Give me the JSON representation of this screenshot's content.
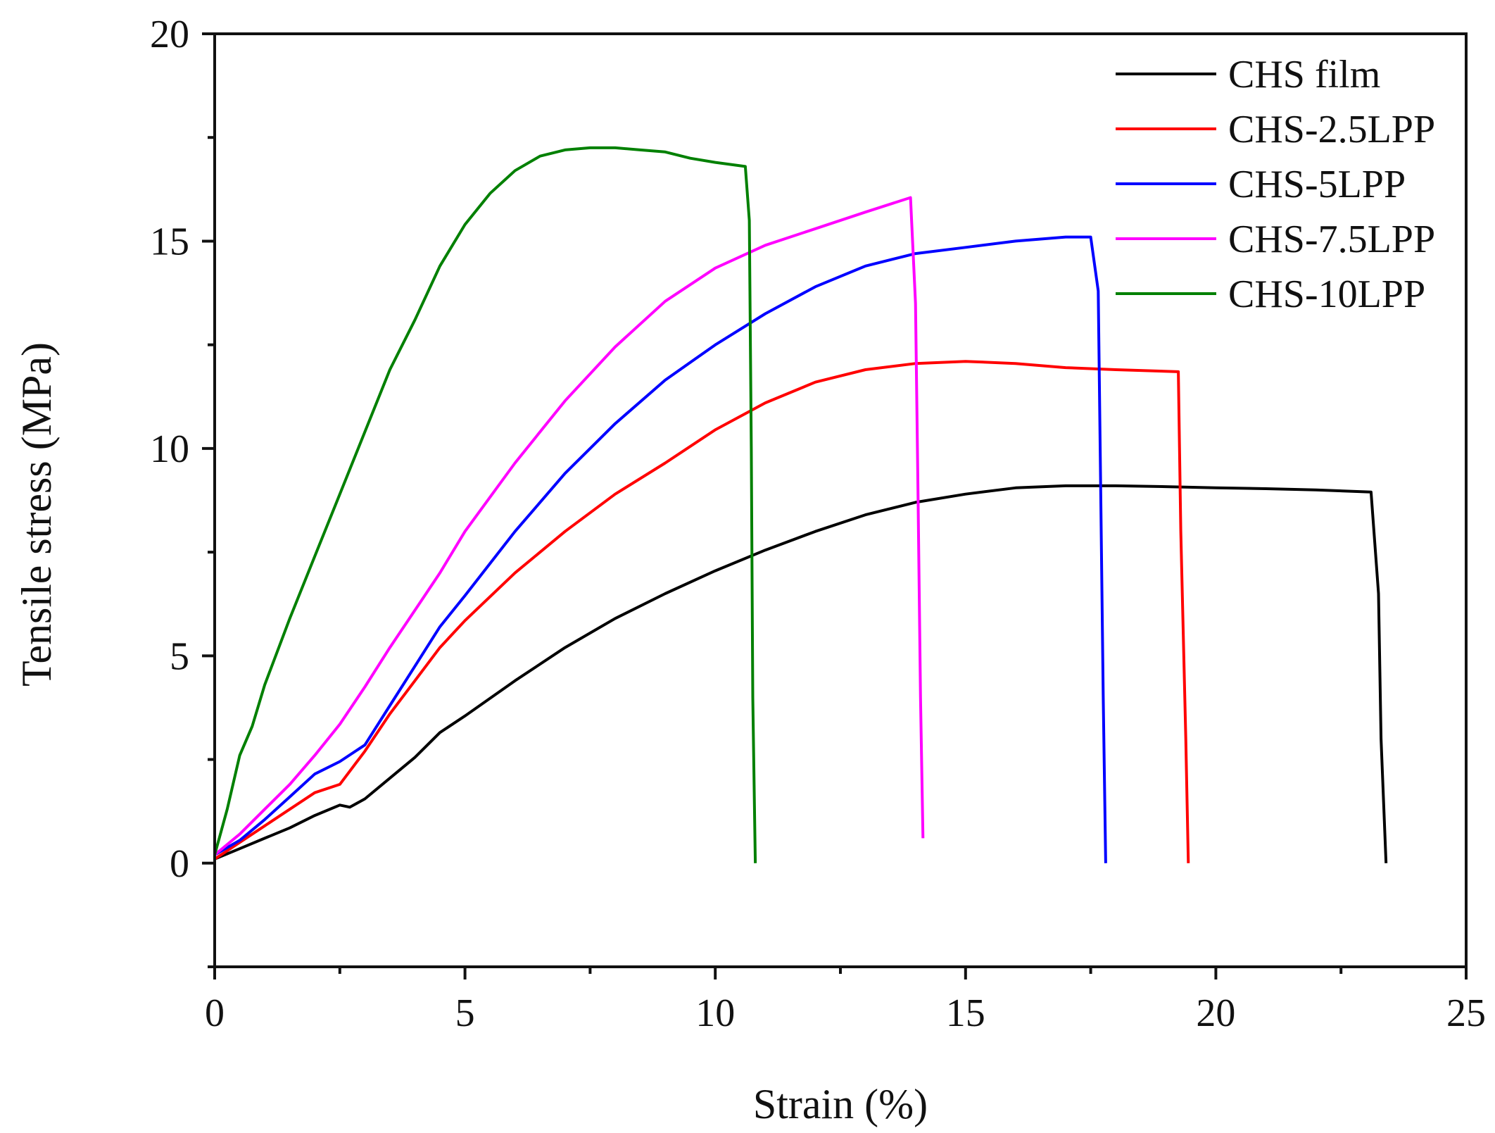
{
  "chart_data": {
    "type": "line",
    "title": "",
    "xlabel": "Strain (%)",
    "ylabel": "Tensile stress (MPa)",
    "xlim": [
      0,
      25
    ],
    "ylim": [
      -2.5,
      20
    ],
    "x_ticks": [
      0,
      5,
      10,
      15,
      20,
      25
    ],
    "x_tick_labels": [
      "0",
      "5",
      "10",
      "15",
      "20",
      "25"
    ],
    "y_ticks": [
      0,
      5,
      10,
      15,
      20
    ],
    "y_tick_labels": [
      "0",
      "5",
      "10",
      "15",
      "20"
    ],
    "grid": false,
    "legend_position": "top-right",
    "series": [
      {
        "name": "CHS film",
        "color": "#000000",
        "points": [
          [
            0,
            0.1
          ],
          [
            0.5,
            0.35
          ],
          [
            1,
            0.6
          ],
          [
            1.5,
            0.85
          ],
          [
            2,
            1.15
          ],
          [
            2.5,
            1.4
          ],
          [
            2.7,
            1.35
          ],
          [
            3,
            1.55
          ],
          [
            3.5,
            2.05
          ],
          [
            4,
            2.55
          ],
          [
            4.5,
            3.15
          ],
          [
            5,
            3.55
          ],
          [
            6,
            4.4
          ],
          [
            7,
            5.2
          ],
          [
            8,
            5.9
          ],
          [
            9,
            6.5
          ],
          [
            10,
            7.05
          ],
          [
            11,
            7.55
          ],
          [
            12,
            8.0
          ],
          [
            13,
            8.4
          ],
          [
            14,
            8.7
          ],
          [
            15,
            8.9
          ],
          [
            16,
            9.05
          ],
          [
            17,
            9.1
          ],
          [
            18,
            9.1
          ],
          [
            19,
            9.08
          ],
          [
            20,
            9.05
          ],
          [
            21,
            9.03
          ],
          [
            22,
            9.0
          ],
          [
            23.1,
            8.95
          ],
          [
            23.25,
            6.5
          ],
          [
            23.3,
            3.0
          ],
          [
            23.4,
            0.0
          ]
        ]
      },
      {
        "name": "CHS-2.5LPP",
        "color": "#ff0000",
        "points": [
          [
            0,
            0.1
          ],
          [
            0.5,
            0.5
          ],
          [
            1,
            0.9
          ],
          [
            1.5,
            1.3
          ],
          [
            2,
            1.7
          ],
          [
            2.5,
            1.9
          ],
          [
            3,
            2.7
          ],
          [
            3.5,
            3.6
          ],
          [
            4,
            4.4
          ],
          [
            4.5,
            5.2
          ],
          [
            5,
            5.85
          ],
          [
            6,
            7.0
          ],
          [
            7,
            8.0
          ],
          [
            8,
            8.9
          ],
          [
            9,
            9.65
          ],
          [
            10,
            10.45
          ],
          [
            11,
            11.1
          ],
          [
            12,
            11.6
          ],
          [
            13,
            11.9
          ],
          [
            14,
            12.05
          ],
          [
            15,
            12.1
          ],
          [
            16,
            12.05
          ],
          [
            17,
            11.95
          ],
          [
            18,
            11.9
          ],
          [
            19.25,
            11.85
          ],
          [
            19.3,
            8.0
          ],
          [
            19.4,
            3.0
          ],
          [
            19.45,
            0.0
          ]
        ]
      },
      {
        "name": "CHS-5LPP",
        "color": "#0000ff",
        "points": [
          [
            0,
            0.2
          ],
          [
            0.5,
            0.55
          ],
          [
            1,
            1.05
          ],
          [
            1.5,
            1.6
          ],
          [
            2,
            2.15
          ],
          [
            2.5,
            2.45
          ],
          [
            3,
            2.85
          ],
          [
            3.5,
            3.8
          ],
          [
            4,
            4.75
          ],
          [
            4.5,
            5.7
          ],
          [
            5,
            6.45
          ],
          [
            6,
            8.0
          ],
          [
            7,
            9.4
          ],
          [
            8,
            10.6
          ],
          [
            9,
            11.65
          ],
          [
            10,
            12.5
          ],
          [
            11,
            13.25
          ],
          [
            12,
            13.9
          ],
          [
            13,
            14.4
          ],
          [
            14,
            14.7
          ],
          [
            15,
            14.85
          ],
          [
            16,
            15.0
          ],
          [
            17,
            15.1
          ],
          [
            17.5,
            15.1
          ],
          [
            17.65,
            13.8
          ],
          [
            17.7,
            9.0
          ],
          [
            17.75,
            4.0
          ],
          [
            17.8,
            0.0
          ]
        ]
      },
      {
        "name": "CHS-7.5LPP",
        "color": "#ff00ff",
        "points": [
          [
            0,
            0.2
          ],
          [
            0.5,
            0.7
          ],
          [
            1,
            1.3
          ],
          [
            1.5,
            1.9
          ],
          [
            2,
            2.6
          ],
          [
            2.5,
            3.35
          ],
          [
            3,
            4.25
          ],
          [
            3.5,
            5.2
          ],
          [
            4,
            6.1
          ],
          [
            4.5,
            7.0
          ],
          [
            5,
            8.0
          ],
          [
            6,
            9.65
          ],
          [
            7,
            11.15
          ],
          [
            8,
            12.45
          ],
          [
            9,
            13.55
          ],
          [
            10,
            14.35
          ],
          [
            11,
            14.9
          ],
          [
            12,
            15.3
          ],
          [
            13,
            15.7
          ],
          [
            13.9,
            16.05
          ],
          [
            14.0,
            13.5
          ],
          [
            14.05,
            9.0
          ],
          [
            14.1,
            4.0
          ],
          [
            14.15,
            0.6
          ]
        ]
      },
      {
        "name": "CHS-10LPP",
        "color": "#008000",
        "points": [
          [
            0,
            0.2
          ],
          [
            0.25,
            1.3
          ],
          [
            0.5,
            2.6
          ],
          [
            0.75,
            3.3
          ],
          [
            1,
            4.3
          ],
          [
            1.5,
            5.9
          ],
          [
            2,
            7.4
          ],
          [
            2.5,
            8.9
          ],
          [
            3,
            10.4
          ],
          [
            3.5,
            11.9
          ],
          [
            4,
            13.1
          ],
          [
            4.5,
            14.4
          ],
          [
            5,
            15.4
          ],
          [
            5.5,
            16.15
          ],
          [
            6,
            16.7
          ],
          [
            6.5,
            17.05
          ],
          [
            7,
            17.2
          ],
          [
            7.5,
            17.25
          ],
          [
            8,
            17.25
          ],
          [
            8.5,
            17.2
          ],
          [
            9,
            17.15
          ],
          [
            9.5,
            17.0
          ],
          [
            10,
            16.9
          ],
          [
            10.6,
            16.8
          ],
          [
            10.68,
            15.5
          ],
          [
            10.72,
            10.0
          ],
          [
            10.75,
            4.0
          ],
          [
            10.8,
            0.0
          ]
        ]
      }
    ]
  }
}
